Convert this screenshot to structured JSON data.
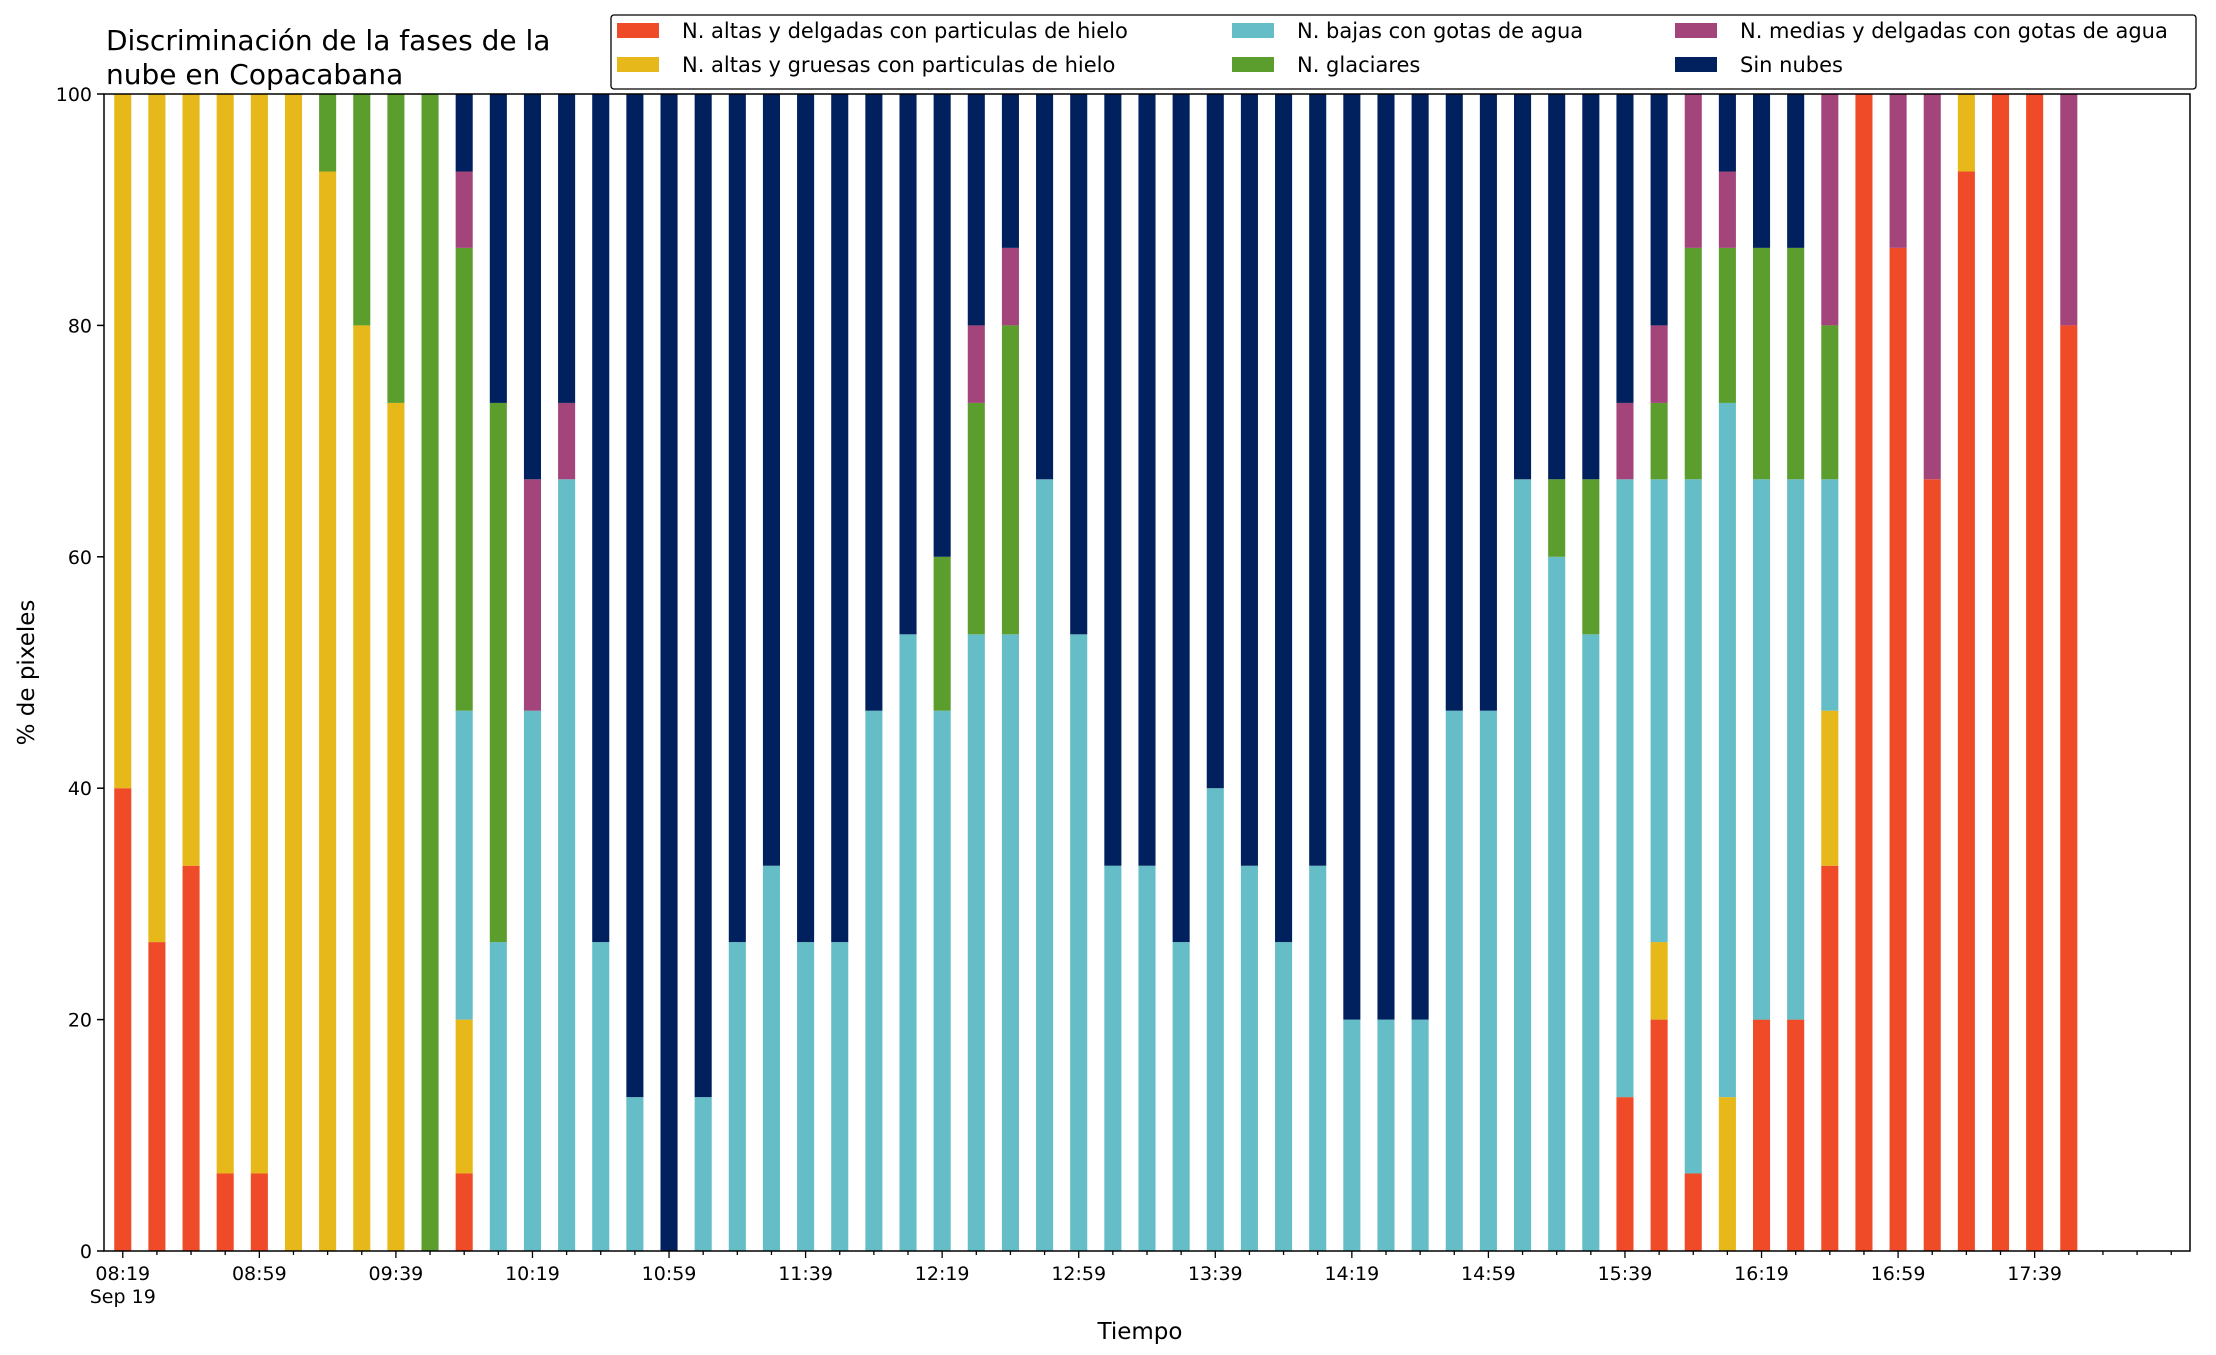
{
  "chart_data": {
    "type": "bar",
    "stacked": true,
    "title": "Discriminación de la fases de la\nnube en Copacabana",
    "xlabel": "Tiempo",
    "ylabel": "% de pixeles",
    "ylim": [
      0,
      100
    ],
    "yticks": [
      0,
      20,
      40,
      60,
      80,
      100
    ],
    "x_tick_labels": [
      "08:19",
      "08:59",
      "09:39",
      "10:19",
      "10:59",
      "11:39",
      "12:19",
      "12:59",
      "13:39",
      "14:19",
      "14:59",
      "15:39",
      "16:19",
      "16:59",
      "17:39"
    ],
    "x_tick_sublabel": "Sep 19",
    "grid": false,
    "legend_position": "top-right",
    "legend_columns": 3,
    "interval_minutes": 10,
    "series": [
      {
        "name": "N. altas y delgadas con particulas de hielo",
        "color": "#f04b28",
        "values": [
          40,
          26.7,
          33.3,
          6.7,
          6.7,
          0,
          0,
          0,
          0,
          0,
          6.7,
          0,
          0,
          0,
          0,
          0,
          0,
          0,
          0,
          0,
          0,
          0,
          0,
          0,
          0,
          0,
          0,
          0,
          0,
          0,
          0,
          0,
          0,
          0,
          0,
          0,
          0,
          0,
          0,
          0,
          0,
          0,
          0,
          0,
          13.3,
          20,
          6.7,
          0,
          20,
          20,
          33.3,
          100,
          86.7,
          66.7,
          93.3,
          100,
          100,
          80
        ]
      },
      {
        "name": "N. altas y gruesas con particulas de hielo",
        "color": "#e6b819",
        "values": [
          60,
          73.3,
          66.7,
          93.3,
          93.3,
          100,
          93.3,
          80,
          73.3,
          0,
          13.3,
          0,
          0,
          0,
          0,
          0,
          0,
          0,
          0,
          0,
          0,
          0,
          0,
          0,
          0,
          0,
          0,
          0,
          0,
          0,
          0,
          0,
          0,
          0,
          0,
          0,
          0,
          0,
          0,
          0,
          0,
          0,
          0,
          0,
          0,
          6.7,
          0,
          13.3,
          0,
          0,
          13.4,
          0,
          0,
          0,
          6.7,
          0,
          0,
          0
        ]
      },
      {
        "name": "N. bajas con gotas de agua",
        "color": "#65bdc8",
        "values": [
          0,
          0,
          0,
          0,
          0,
          0,
          0,
          0,
          0,
          0,
          26.7,
          26.7,
          46.7,
          66.7,
          26.7,
          13.3,
          0,
          13.3,
          26.7,
          33.3,
          26.7,
          26.7,
          46.7,
          53.3,
          46.7,
          53.3,
          53.3,
          66.7,
          53.3,
          33.3,
          33.3,
          26.7,
          40,
          33.3,
          26.7,
          33.3,
          20,
          20,
          20,
          46.7,
          46.7,
          66.7,
          60,
          53.3,
          53.4,
          40,
          60,
          60,
          46.7,
          46.7,
          20,
          0,
          0,
          0,
          0,
          0,
          0,
          0
        ]
      },
      {
        "name": "N. glaciares",
        "color": "#5c9e2d",
        "values": [
          0,
          0,
          0,
          0,
          0,
          0,
          6.7,
          20,
          26.7,
          100,
          40,
          46.6,
          0,
          0,
          0,
          0,
          0,
          0,
          0,
          0,
          0,
          0,
          0,
          0,
          13.3,
          20,
          26.7,
          0,
          0,
          0,
          0,
          0,
          0,
          0,
          0,
          0,
          0,
          0,
          0,
          0,
          0,
          0,
          6.7,
          13.4,
          0,
          6.6,
          20,
          13.4,
          20,
          20,
          13.3,
          0,
          0,
          0,
          0,
          0,
          0,
          0
        ]
      },
      {
        "name": "N. medias y delgadas con gotas de agua",
        "color": "#a3457b",
        "values": [
          0,
          0,
          0,
          0,
          0,
          0,
          0,
          0,
          0,
          0,
          6.6,
          0,
          20,
          6.6,
          0,
          0,
          0,
          0,
          0,
          0,
          0,
          0,
          0,
          0,
          0,
          6.7,
          6.7,
          0,
          0,
          0,
          0,
          0,
          0,
          0,
          0,
          0,
          0,
          0,
          0,
          0,
          0,
          0,
          0,
          0,
          6.6,
          6.7,
          13.3,
          6.6,
          0,
          0,
          20,
          0,
          13.3,
          33.3,
          0,
          0,
          0,
          20
        ]
      },
      {
        "name": "Sin nubes",
        "color": "#00205e",
        "values": [
          0,
          0,
          0,
          0,
          0,
          0,
          0,
          0,
          0,
          0,
          6.7,
          26.7,
          33.3,
          26.7,
          73.3,
          86.7,
          100,
          86.7,
          73.3,
          66.7,
          73.3,
          73.3,
          53.3,
          46.7,
          40,
          20,
          13.3,
          33.3,
          46.7,
          66.7,
          66.7,
          73.3,
          60,
          66.7,
          73.3,
          66.7,
          80,
          80,
          80,
          53.3,
          53.3,
          33.3,
          33.3,
          33.3,
          26.7,
          20,
          0,
          6.7,
          13.3,
          13.3,
          0,
          0,
          0,
          0,
          0,
          0,
          0,
          0
        ]
      }
    ]
  }
}
